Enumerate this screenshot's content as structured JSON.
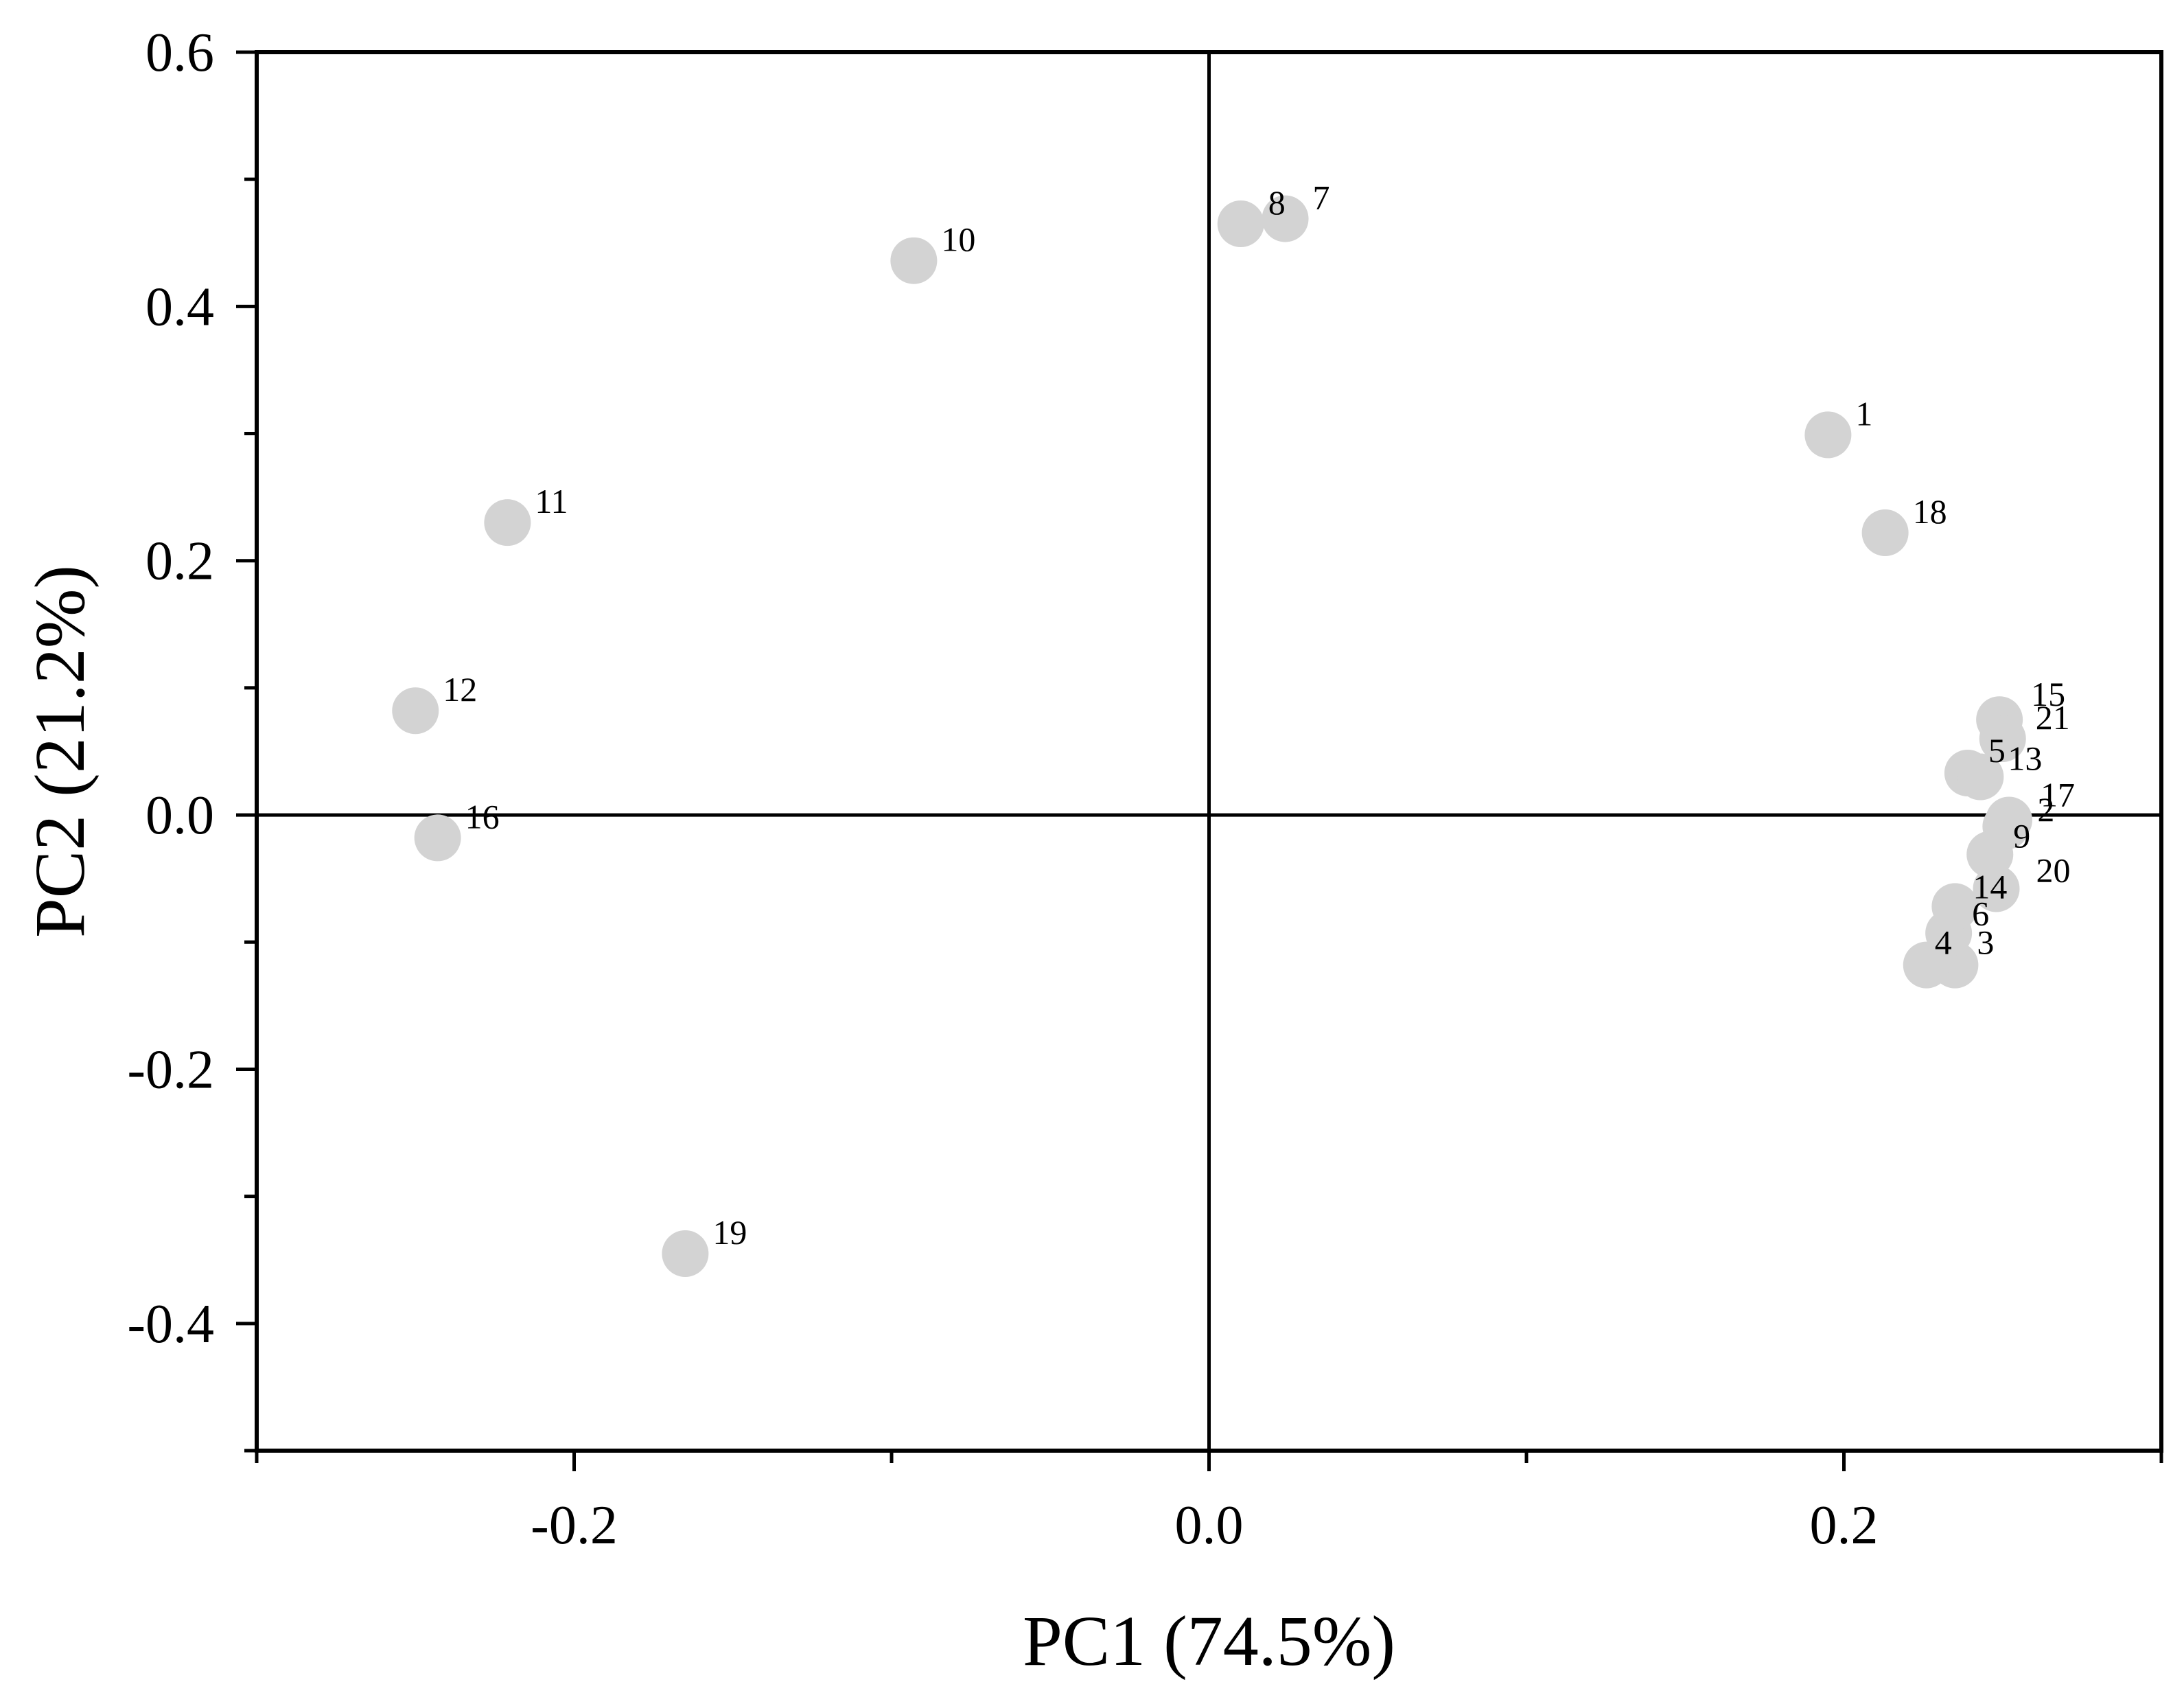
{
  "chart_data": {
    "type": "scatter",
    "title": "",
    "xlabel": "PC1 (74.5%)",
    "ylabel": "PC2 (21.2%)",
    "xlim": [
      -0.3,
      0.3
    ],
    "ylim": [
      -0.5,
      0.6
    ],
    "xticks": [
      -0.2,
      0.0,
      0.2
    ],
    "xtick_labels": [
      "-0.2",
      "0.0",
      "0.2"
    ],
    "yticks": [
      -0.4,
      -0.2,
      0.0,
      0.2,
      0.4,
      0.6
    ],
    "ytick_labels": [
      "-0.4",
      "-0.2",
      "0.0",
      "0.2",
      "0.4",
      "0.6"
    ],
    "grid": false,
    "reference_lines": {
      "x": 0,
      "y": 0
    },
    "marker_color": "#d3d3d3",
    "points": [
      {
        "label": "1",
        "x": 0.195,
        "y": 0.299
      },
      {
        "label": "2",
        "x": 0.251,
        "y": -0.009
      },
      {
        "label": "3",
        "x": 0.235,
        "y": -0.118
      },
      {
        "label": "4",
        "x": 0.226,
        "y": -0.118
      },
      {
        "label": "5",
        "x": 0.239,
        "y": 0.033
      },
      {
        "label": "6",
        "x": 0.233,
        "y": -0.093
      },
      {
        "label": "7",
        "x": 0.024,
        "y": 0.469
      },
      {
        "label": "8",
        "x": 0.01,
        "y": 0.465
      },
      {
        "label": "9",
        "x": 0.246,
        "y": -0.031
      },
      {
        "label": "10",
        "x": -0.093,
        "y": 0.436
      },
      {
        "label": "11",
        "x": -0.221,
        "y": 0.23
      },
      {
        "label": "12",
        "x": -0.25,
        "y": 0.082
      },
      {
        "label": "13",
        "x": 0.243,
        "y": 0.03
      },
      {
        "label": "14",
        "x": 0.235,
        "y": -0.072
      },
      {
        "label": "15",
        "x": 0.249,
        "y": 0.075
      },
      {
        "label": "16",
        "x": -0.243,
        "y": -0.018
      },
      {
        "label": "17",
        "x": 0.252,
        "y": -0.004
      },
      {
        "label": "18",
        "x": 0.213,
        "y": 0.222
      },
      {
        "label": "19",
        "x": -0.165,
        "y": -0.345
      },
      {
        "label": "20",
        "x": 0.248,
        "y": -0.058
      },
      {
        "label": "21",
        "x": 0.25,
        "y": 0.06
      }
    ]
  }
}
